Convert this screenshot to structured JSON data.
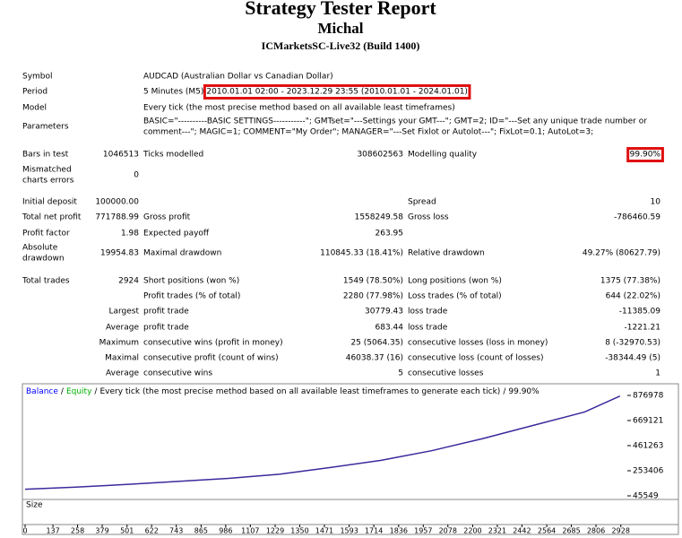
{
  "header": {
    "title": "Strategy Tester Report",
    "subtitle": "Michal",
    "server": "ICMarketsSC-Live32 (Build 1400)"
  },
  "report": {
    "rows": [
      [
        "Symbol",
        null,
        "AUDCAD (Australian Dollar vs Canadian Dollar)"
      ],
      [
        "Period",
        null,
        {
          "prefix": "5 Minutes (M5)",
          "range": "2010.01.01 02:00 - 2023.12.29 23:55 (2010.01.01 - 2024.01.01)"
        }
      ],
      [
        "Model",
        null,
        "Every tick (the most precise method based on all available least timeframes)"
      ],
      [
        "Parameters",
        null,
        [
          "BASIC=\"----------BASIC SETTINGS-----------\"; GMTset=\"---Settings your GMT---\"; GMT=2; ID=\"---Set any unique trade number or",
          "comment---\"; MAGIC=1; COMMENT=\"My Order\"; MANAGER=\"---Set Fixlot or Autolot---\"; FixLot=0.1; AutoLot=3;"
        ]
      ],
      [
        "Bars in test",
        "1046513",
        "Ticks modelled",
        "308602563",
        "Modelling quality",
        "99.90%"
      ],
      [
        [
          "Mismatched",
          "charts errors"
        ],
        "0"
      ],
      [
        "Initial deposit",
        "100000.00",
        null,
        null,
        "Spread",
        "10"
      ],
      [
        "Total net profit",
        "771788.99",
        "Gross profit",
        "1558249.58",
        "Gross loss",
        "-786460.59"
      ],
      [
        "Profit factor",
        "1.98",
        "Expected payoff",
        "263.95"
      ],
      [
        [
          "Absolute",
          "drawdown"
        ],
        "19954.83",
        "Maximal drawdown",
        "110845.33 (18.41%)",
        "Relative drawdown",
        "49.27% (80627.79)"
      ],
      [
        "Total trades",
        "2924",
        "Short positions (won %)",
        "1549 (78.50%)",
        "Long positions (won %)",
        "1375 (77.38%)"
      ],
      [
        null,
        null,
        "Profit trades (% of total)",
        "2280 (77.98%)",
        "Loss trades (% of total)",
        "644 (22.02%)"
      ],
      [
        null,
        "Largest",
        "profit trade",
        "30779.43",
        "loss trade",
        "-11385.09"
      ],
      [
        null,
        "Average",
        "profit trade",
        "683.44",
        "loss trade",
        "-1221.21"
      ],
      [
        null,
        "Maximum",
        "consecutive wins (profit in money)",
        "25 (5064.35)",
        "consecutive losses (loss in money)",
        "8 (-32970.53)"
      ],
      [
        null,
        "Maximal",
        "consecutive profit (count of wins)",
        "46038.37 (16)",
        "consecutive loss (count of losses)",
        "-38344.49 (5)"
      ],
      [
        null,
        "Average",
        "consecutive wins",
        "5",
        "consecutive losses",
        "1"
      ]
    ]
  },
  "chart": {
    "type": "line",
    "legend": [
      {
        "text": "Balance",
        "color": "#0000ff"
      },
      {
        "text": "Equity",
        "color": "#00b000"
      },
      {
        "text": "Every tick (the most precise method based on all available least timeframes to generate each tick)",
        "color": "#000000"
      },
      {
        "text": "99.90%",
        "color": "#000000"
      }
    ],
    "separator": "/",
    "x": [
      0,
      250,
      500,
      750,
      1000,
      1250,
      1500,
      1750,
      2000,
      2250,
      2500,
      2750,
      2924
    ],
    "series": [
      {
        "name": "Balance",
        "color": "#3a2a9c",
        "values": [
          100000,
          118000,
          140000,
          165000,
          190000,
          225000,
          280000,
          340000,
          420000,
          520000,
          630000,
          740000,
          871789
        ]
      }
    ],
    "xlim": [
      0,
      2960
    ],
    "ylim": [
      23280,
      943790
    ],
    "yticks": [
      45549,
      253406,
      461263,
      669121,
      876978
    ],
    "xticks": [
      0,
      137,
      258,
      379,
      501,
      622,
      743,
      865,
      986,
      1107,
      1229,
      1350,
      1471,
      1593,
      1714,
      1836,
      1957,
      2078,
      2200,
      2321,
      2442,
      2564,
      2685,
      2806,
      2928
    ],
    "size_label": "Size"
  }
}
